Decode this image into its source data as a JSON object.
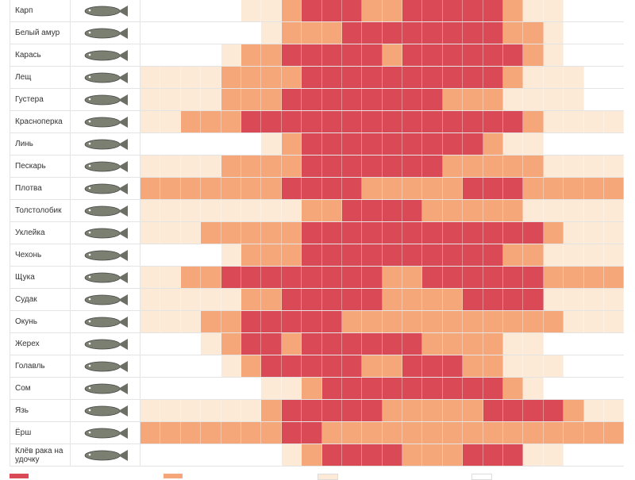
{
  "table": {
    "colors": [
      "#ffffff",
      "#fce9d6",
      "#f5a77a",
      "#d94a56"
    ],
    "rows": [
      {
        "name": "Карп",
        "levels": [
          0,
          0,
          0,
          0,
          0,
          1,
          1,
          2,
          3,
          3,
          3,
          2,
          2,
          3,
          3,
          3,
          3,
          3,
          2,
          1,
          1,
          0,
          0,
          0
        ]
      },
      {
        "name": "Белый амур",
        "levels": [
          0,
          0,
          0,
          0,
          0,
          0,
          1,
          2,
          2,
          2,
          3,
          3,
          3,
          3,
          3,
          3,
          3,
          3,
          2,
          2,
          1,
          0,
          0,
          0
        ]
      },
      {
        "name": "Карась",
        "levels": [
          0,
          0,
          0,
          0,
          1,
          2,
          2,
          3,
          3,
          3,
          3,
          3,
          2,
          3,
          3,
          3,
          3,
          3,
          3,
          2,
          1,
          0,
          0,
          0
        ]
      },
      {
        "name": "Лещ",
        "levels": [
          1,
          1,
          1,
          1,
          2,
          2,
          2,
          2,
          3,
          3,
          3,
          3,
          3,
          3,
          3,
          3,
          3,
          3,
          2,
          1,
          1,
          1,
          0,
          0
        ]
      },
      {
        "name": "Густера",
        "levels": [
          1,
          1,
          1,
          1,
          2,
          2,
          2,
          3,
          3,
          3,
          3,
          3,
          3,
          3,
          3,
          2,
          2,
          2,
          1,
          1,
          1,
          1,
          0,
          0
        ]
      },
      {
        "name": "Красноперка",
        "levels": [
          1,
          1,
          2,
          2,
          2,
          3,
          3,
          3,
          3,
          3,
          3,
          3,
          3,
          3,
          3,
          3,
          3,
          3,
          3,
          2,
          1,
          1,
          1,
          1
        ]
      },
      {
        "name": "Линь",
        "levels": [
          0,
          0,
          0,
          0,
          0,
          0,
          1,
          2,
          3,
          3,
          3,
          3,
          3,
          3,
          3,
          3,
          3,
          2,
          1,
          1,
          0,
          0,
          0,
          0
        ]
      },
      {
        "name": "Пескарь",
        "levels": [
          1,
          1,
          1,
          1,
          2,
          2,
          2,
          2,
          3,
          3,
          3,
          3,
          3,
          3,
          3,
          2,
          2,
          2,
          2,
          2,
          1,
          1,
          1,
          1
        ]
      },
      {
        "name": "Плотва",
        "levels": [
          2,
          2,
          2,
          2,
          2,
          2,
          2,
          3,
          3,
          3,
          3,
          2,
          2,
          2,
          2,
          2,
          3,
          3,
          3,
          2,
          2,
          2,
          2,
          2
        ]
      },
      {
        "name": "Толстолобик",
        "levels": [
          1,
          1,
          1,
          1,
          1,
          1,
          1,
          1,
          2,
          2,
          3,
          3,
          3,
          3,
          2,
          2,
          2,
          2,
          2,
          1,
          1,
          1,
          1,
          1
        ]
      },
      {
        "name": "Уклейка",
        "levels": [
          1,
          1,
          1,
          2,
          2,
          2,
          2,
          2,
          3,
          3,
          3,
          3,
          3,
          3,
          3,
          3,
          3,
          3,
          3,
          3,
          2,
          1,
          1,
          1
        ]
      },
      {
        "name": "Чехонь",
        "levels": [
          0,
          0,
          0,
          0,
          1,
          2,
          2,
          2,
          3,
          3,
          3,
          3,
          3,
          3,
          3,
          3,
          3,
          3,
          2,
          2,
          1,
          1,
          1,
          1
        ]
      },
      {
        "name": "Щука",
        "levels": [
          1,
          1,
          2,
          2,
          3,
          3,
          3,
          3,
          3,
          3,
          3,
          3,
          2,
          2,
          3,
          3,
          3,
          3,
          3,
          3,
          2,
          2,
          2,
          2
        ]
      },
      {
        "name": "Судак",
        "levels": [
          1,
          1,
          1,
          1,
          1,
          2,
          2,
          3,
          3,
          3,
          3,
          3,
          2,
          2,
          2,
          2,
          3,
          3,
          3,
          3,
          1,
          1,
          1,
          1
        ]
      },
      {
        "name": "Окунь",
        "levels": [
          1,
          1,
          1,
          2,
          2,
          3,
          3,
          3,
          3,
          3,
          2,
          2,
          2,
          2,
          2,
          2,
          2,
          2,
          2,
          2,
          2,
          1,
          1,
          1
        ]
      },
      {
        "name": "Жерех",
        "levels": [
          0,
          0,
          0,
          1,
          2,
          3,
          3,
          2,
          3,
          3,
          3,
          3,
          3,
          3,
          2,
          2,
          2,
          2,
          1,
          1,
          0,
          0,
          0,
          0
        ]
      },
      {
        "name": "Голавль",
        "levels": [
          0,
          0,
          0,
          0,
          1,
          2,
          3,
          3,
          3,
          3,
          3,
          2,
          2,
          3,
          3,
          3,
          2,
          2,
          1,
          1,
          1,
          0,
          0,
          0
        ]
      },
      {
        "name": "Сом",
        "levels": [
          0,
          0,
          0,
          0,
          0,
          0,
          1,
          1,
          2,
          3,
          3,
          3,
          3,
          3,
          3,
          3,
          3,
          3,
          2,
          1,
          0,
          0,
          0,
          0
        ]
      },
      {
        "name": "Язь",
        "levels": [
          1,
          1,
          1,
          1,
          1,
          1,
          2,
          3,
          3,
          3,
          3,
          3,
          2,
          2,
          2,
          2,
          2,
          3,
          3,
          3,
          3,
          2,
          1,
          1
        ]
      },
      {
        "name": "Ёрш",
        "levels": [
          2,
          2,
          2,
          2,
          2,
          2,
          2,
          3,
          3,
          2,
          2,
          2,
          2,
          2,
          2,
          2,
          2,
          2,
          2,
          2,
          2,
          2,
          2,
          2
        ]
      },
      {
        "name": "Клёв рака на удочку",
        "levels": [
          0,
          0,
          0,
          0,
          0,
          0,
          0,
          1,
          2,
          3,
          3,
          3,
          3,
          2,
          2,
          2,
          3,
          3,
          3,
          1,
          1,
          0,
          0,
          0
        ]
      }
    ]
  }
}
